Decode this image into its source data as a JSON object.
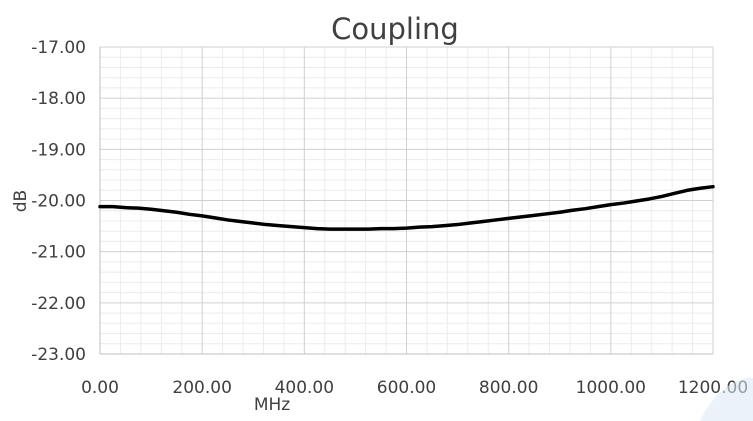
{
  "chart_data": {
    "type": "line",
    "title": "Coupling",
    "xlabel": "MHz",
    "ylabel": "dB",
    "xlim": [
      0,
      1200
    ],
    "ylim": [
      -23,
      -17
    ],
    "x_ticks": [
      "0.00",
      "200.00",
      "400.00",
      "600.00",
      "800.00",
      "1000.00",
      "1200.00"
    ],
    "y_ticks": [
      "-17.00",
      "-18.00",
      "-19.00",
      "-20.00",
      "-21.00",
      "-22.00",
      "-23.00"
    ],
    "grid": true,
    "legend": "none",
    "series": [
      {
        "color": "#000000",
        "x": [
          0,
          25,
          50,
          75,
          100,
          125,
          150,
          175,
          200,
          225,
          250,
          275,
          300,
          325,
          350,
          375,
          400,
          425,
          450,
          475,
          500,
          525,
          550,
          575,
          600,
          625,
          650,
          675,
          700,
          725,
          750,
          775,
          800,
          825,
          850,
          875,
          900,
          925,
          950,
          975,
          1000,
          1025,
          1050,
          1075,
          1100,
          1125,
          1150,
          1175,
          1200
        ],
        "y": [
          -20.12,
          -20.12,
          -20.14,
          -20.15,
          -20.17,
          -20.2,
          -20.23,
          -20.27,
          -20.3,
          -20.34,
          -20.38,
          -20.41,
          -20.44,
          -20.47,
          -20.49,
          -20.51,
          -20.53,
          -20.55,
          -20.56,
          -20.56,
          -20.56,
          -20.56,
          -20.55,
          -20.55,
          -20.54,
          -20.52,
          -20.51,
          -20.49,
          -20.47,
          -20.44,
          -20.41,
          -20.38,
          -20.35,
          -20.32,
          -20.29,
          -20.26,
          -20.23,
          -20.19,
          -20.16,
          -20.12,
          -20.08,
          -20.05,
          -20.01,
          -19.97,
          -19.92,
          -19.86,
          -19.8,
          -19.76,
          -19.73
        ]
      }
    ]
  }
}
